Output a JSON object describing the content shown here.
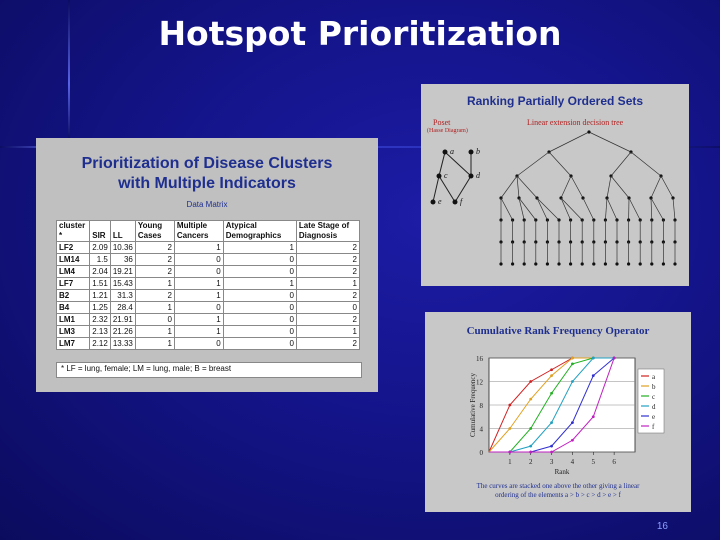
{
  "slide": {
    "title": "Hotspot Prioritization",
    "page_number": "16"
  },
  "data_matrix_panel": {
    "title_line1": "Prioritization of Disease Clusters",
    "title_line2": "with Multiple Indicators",
    "subtitle": "Data Matrix",
    "headers": [
      "cluster *",
      "SIR",
      "LL",
      "Young Cases",
      "Multiple Cancers",
      "Atypical Demographics",
      "Late Stage of Diagnosis"
    ],
    "rows": [
      [
        "LF2",
        "2.09",
        "10.36",
        "2",
        "1",
        "1",
        "2"
      ],
      [
        "LM14",
        "1.5",
        "36",
        "2",
        "0",
        "0",
        "2"
      ],
      [
        "LM4",
        "2.04",
        "19.21",
        "2",
        "0",
        "0",
        "2"
      ],
      [
        "LF7",
        "1.51",
        "15.43",
        "1",
        "1",
        "1",
        "1"
      ],
      [
        "B2",
        "1.21",
        "31.3",
        "2",
        "1",
        "0",
        "2"
      ],
      [
        "B4",
        "1.25",
        "28.4",
        "1",
        "0",
        "0",
        "0"
      ],
      [
        "LM1",
        "2.32",
        "21.91",
        "0",
        "1",
        "0",
        "2"
      ],
      [
        "LM3",
        "2.13",
        "21.26",
        "1",
        "1",
        "0",
        "1"
      ],
      [
        "LM7",
        "2.12",
        "13.33",
        "1",
        "0",
        "0",
        "2"
      ]
    ],
    "footnote": "* LF = lung, female; LM = lung, male; B = breast"
  },
  "ranking_panel": {
    "title": "Ranking Partially Ordered Sets",
    "poset_label": "Poset",
    "hasse_label": "(Hasse Diagram)",
    "linear_label": "Linear extension decision tree",
    "poset_nodes": [
      "a",
      "b",
      "c",
      "d",
      "e",
      "f"
    ]
  },
  "cumulative_panel": {
    "title": "Cumulative Rank Frequency Operator",
    "caption_line1": "The curves are stacked one above the other giving a linear",
    "caption_line2": "ordering of the elements a > b > c > d > e > f"
  },
  "chart_data": {
    "type": "line",
    "title": "Cumulative Rank Frequency Operator",
    "xlabel": "Rank",
    "ylabel": "Cumulative Frequency",
    "xlim": [
      0,
      7
    ],
    "ylim": [
      0,
      16
    ],
    "x_ticks": [
      "1",
      "2",
      "3",
      "4",
      "5",
      "6"
    ],
    "y_ticks": [
      "0",
      "4",
      "8",
      "12",
      "16"
    ],
    "legend_position": "right",
    "x": [
      1,
      2,
      3,
      4,
      5,
      6
    ],
    "series": [
      {
        "name": "a",
        "color": "#d02020",
        "values": [
          8,
          12,
          14,
          16,
          16,
          16
        ]
      },
      {
        "name": "b",
        "color": "#e0a020",
        "values": [
          4,
          9,
          13,
          16,
          16,
          16
        ]
      },
      {
        "name": "c",
        "color": "#20b020",
        "values": [
          0,
          4,
          10,
          15,
          16,
          16
        ]
      },
      {
        "name": "d",
        "color": "#20a0c0",
        "values": [
          0,
          1,
          5,
          12,
          16,
          16
        ]
      },
      {
        "name": "e",
        "color": "#3030d0",
        "values": [
          0,
          0,
          1,
          5,
          13,
          16
        ]
      },
      {
        "name": "f",
        "color": "#c020c0",
        "values": [
          0,
          0,
          0,
          2,
          6,
          16
        ]
      }
    ]
  }
}
